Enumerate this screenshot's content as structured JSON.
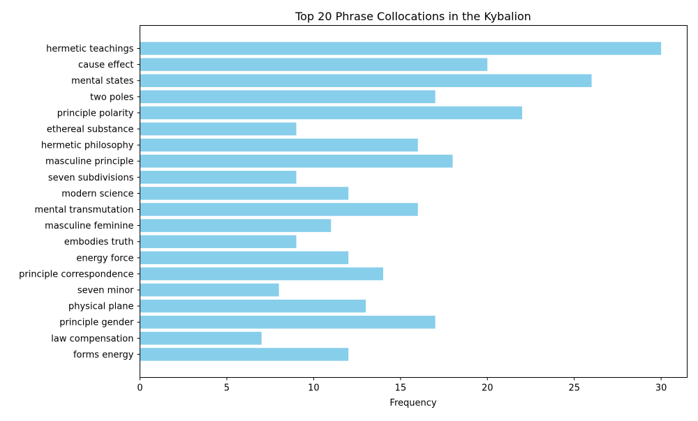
{
  "chart_data": {
    "type": "bar",
    "orientation": "horizontal",
    "title": "Top 20 Phrase Collocations in the Kybalion",
    "xlabel": "Frequency",
    "ylabel": "",
    "xlim": [
      0,
      31.5
    ],
    "xticks": [
      0,
      5,
      10,
      15,
      20,
      25,
      30
    ],
    "grid": false,
    "legend": "none",
    "bar_color": "#87ceeb",
    "categories": [
      "hermetic teachings",
      "cause effect",
      "mental states",
      "two poles",
      "principle polarity",
      "ethereal substance",
      "hermetic philosophy",
      "masculine principle",
      "seven subdivisions",
      "modern science",
      "mental transmutation",
      "masculine feminine",
      "embodies truth",
      "energy force",
      "principle correspondence",
      "seven minor",
      "physical plane",
      "principle gender",
      "law compensation",
      "forms energy"
    ],
    "values": [
      30,
      20,
      26,
      17,
      22,
      9,
      16,
      18,
      9,
      12,
      16,
      11,
      9,
      12,
      14,
      8,
      13,
      17,
      7,
      12
    ]
  }
}
